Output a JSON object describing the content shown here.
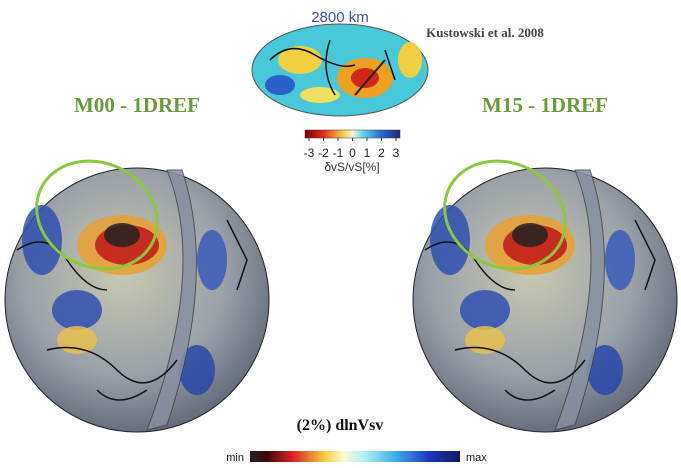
{
  "inset": {
    "depth_label": "2800 km",
    "citation": "Kustowski et al. 2008",
    "colorbar": {
      "ticks": [
        -3,
        -2,
        -1,
        0,
        1,
        2,
        3
      ],
      "label": "δvS/vS[%]"
    }
  },
  "panels": [
    {
      "title": "M00 - 1DREF"
    },
    {
      "title": "M15 - 1DREF"
    }
  ],
  "colorbar": {
    "title": "(2%) dlnVsv",
    "min_label": "min",
    "max_label": "max"
  }
}
